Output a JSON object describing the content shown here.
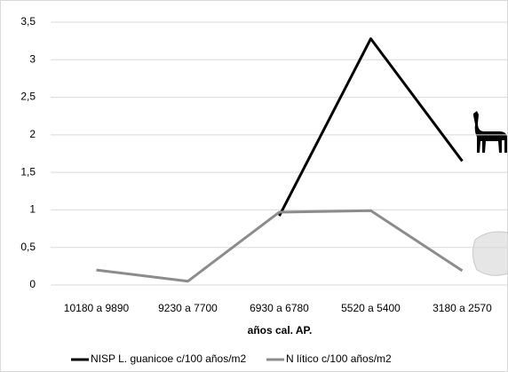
{
  "chart_data": {
    "type": "line",
    "categories": [
      "10180 a 9890",
      "9230 a 7700",
      "6930 a 6780",
      "5520 a 5400",
      "3180 a 2570"
    ],
    "x_label": "años cal. AP.",
    "series": [
      {
        "name": "NISP L. guanicoe c/100 años/m2",
        "color": "#000000",
        "values": [
          null,
          null,
          0.92,
          3.28,
          1.65
        ]
      },
      {
        "name": "N lítico c/100 años/m2",
        "color": "#8c8c8c",
        "values": [
          0.2,
          0.05,
          0.97,
          0.99,
          0.19
        ]
      }
    ],
    "ylim": [
      0,
      3.5
    ],
    "yticks": [
      0,
      {
        "value": 0.5,
        "label": "0,5"
      },
      1,
      {
        "value": 1.5,
        "label": "1,5"
      },
      2,
      {
        "value": 2.5,
        "label": "2,5"
      },
      3,
      {
        "value": 3.5,
        "label": "3,5"
      }
    ],
    "grid": true,
    "legend": "bottom"
  }
}
